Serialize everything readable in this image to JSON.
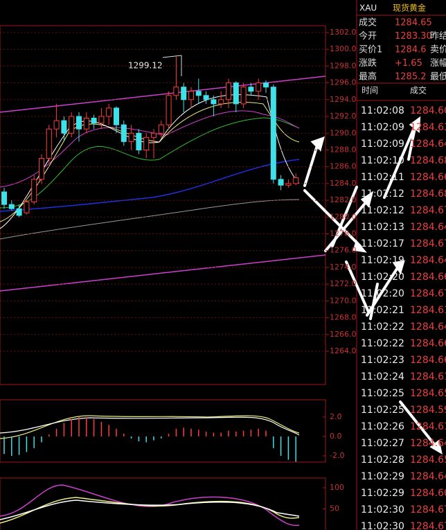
{
  "header": {
    "symbol": "XAU",
    "name": "现货黄金"
  },
  "quote": [
    {
      "label": "成交",
      "value": "1284.65"
    },
    {
      "label": "今开",
      "value": "1283.30",
      "extra": "昨结"
    },
    {
      "label": "买价1",
      "value": "1284.6",
      "extra": "卖价"
    },
    {
      "label": "涨跌",
      "value": "+1.65",
      "extra": "涨幅"
    },
    {
      "label": "最高",
      "value": "1285.2",
      "extra": "最低"
    }
  ],
  "trades": {
    "headers": [
      "时间",
      "成交"
    ],
    "rows": [
      [
        "11:02:08",
        "1284.60"
      ],
      [
        "11:02:09",
        "1284.63"
      ],
      [
        "11:02:09",
        "1284.64"
      ],
      [
        "11:02:10",
        "1284.68"
      ],
      [
        "11:02:11",
        "1284.66"
      ],
      [
        "11:02:12",
        "1284.68"
      ],
      [
        "11:02:12",
        "1284.67"
      ],
      [
        "11:02:13",
        "1284.64"
      ],
      [
        "11:02:17",
        "1284.67"
      ],
      [
        "11:02:19",
        "1284.64"
      ],
      [
        "11:02:20",
        "1284.66"
      ],
      [
        "11:02:20",
        "1284.67"
      ],
      [
        "11:02:21",
        "1284.61"
      ],
      [
        "11:02:22",
        "1284.64"
      ],
      [
        "11:02:22",
        "1284.66"
      ],
      [
        "11:02:23",
        "1284.66"
      ],
      [
        "11:02:24",
        "1284.61"
      ],
      [
        "11:02:25",
        "1284.65"
      ],
      [
        "11:02:25",
        "1284.59"
      ],
      [
        "11:02:26",
        "1284.61"
      ],
      [
        "11:02:27",
        "1284.64"
      ],
      [
        "11:02:28",
        "1284.65"
      ],
      [
        "11:02:29",
        "1284.64"
      ],
      [
        "11:02:29",
        "1284.60"
      ],
      [
        "11:02:30",
        "1284.67"
      ],
      [
        "11:02:30",
        "1284.67"
      ]
    ]
  },
  "chart": {
    "annotation": "1299.12",
    "ylim": [
      1302.8,
      1262.8
    ],
    "yticks": [
      {
        "value": 1302,
        "label": "1302.0"
      },
      {
        "value": 1300,
        "label": "1300.0"
      },
      {
        "value": 1298,
        "label": "1298.0"
      },
      {
        "value": 1296,
        "label": "1296.0"
      },
      {
        "value": 1294,
        "label": "1294.0"
      },
      {
        "value": 1292,
        "label": "1292.0"
      },
      {
        "value": 1290,
        "label": "1290.0"
      },
      {
        "value": 1288,
        "label": "1288.0"
      },
      {
        "value": 1286,
        "label": "1286.0"
      },
      {
        "value": 1284,
        "label": "1284.0"
      },
      {
        "value": 1282,
        "label": "1282.0"
      },
      {
        "value": 1280,
        "label": "1280.0"
      },
      {
        "value": 1278,
        "label": "1278.0"
      },
      {
        "value": 1276,
        "label": "1276.0"
      },
      {
        "value": 1274,
        "label": "1274.0"
      },
      {
        "value": 1272,
        "label": "1272.0"
      },
      {
        "value": 1270,
        "label": "1270.0"
      },
      {
        "value": 1268,
        "label": "1268.0"
      },
      {
        "value": 1266,
        "label": "1266.0"
      },
      {
        "value": 1264,
        "label": "1264.0"
      }
    ],
    "candles": [
      [
        1283.0,
        1281.5,
        1283.5,
        1281.0
      ],
      [
        1281.5,
        1281.0,
        1282.0,
        1280.8
      ],
      [
        1281.0,
        1280.2,
        1281.5,
        1280.0
      ],
      [
        1280.5,
        1281.8,
        1282.2,
        1280.3
      ],
      [
        1281.8,
        1284.5,
        1285.0,
        1281.5
      ],
      [
        1284.5,
        1287.0,
        1287.5,
        1284.0
      ],
      [
        1287.0,
        1290.5,
        1291.0,
        1286.5
      ],
      [
        1290.5,
        1291.5,
        1293.5,
        1289.5
      ],
      [
        1291.5,
        1290.0,
        1292.0,
        1289.0
      ],
      [
        1290.0,
        1292.0,
        1292.5,
        1289.5
      ],
      [
        1292.0,
        1290.5,
        1292.5,
        1289.0
      ],
      [
        1290.5,
        1291.8,
        1292.5,
        1290.0
      ],
      [
        1291.8,
        1291.2,
        1292.2,
        1290.5
      ],
      [
        1291.2,
        1292.0,
        1293.0,
        1290.5
      ],
      [
        1292.0,
        1293.0,
        1293.5,
        1291.0
      ],
      [
        1293.0,
        1291.0,
        1293.2,
        1290.0
      ],
      [
        1291.0,
        1289.0,
        1291.5,
        1288.5
      ],
      [
        1289.0,
        1290.0,
        1291.0,
        1288.0
      ],
      [
        1290.0,
        1288.0,
        1290.5,
        1287.5
      ],
      [
        1288.0,
        1289.5,
        1290.0,
        1287.0
      ],
      [
        1289.5,
        1290.0,
        1290.5,
        1287.0
      ],
      [
        1290.0,
        1291.0,
        1291.5,
        1289.5
      ],
      [
        1291.0,
        1294.5,
        1295.0,
        1290.5
      ],
      [
        1294.5,
        1295.5,
        1299.12,
        1294.0
      ],
      [
        1295.5,
        1294.0,
        1296.0,
        1292.5
      ],
      [
        1294.0,
        1295.0,
        1295.5,
        1293.0
      ],
      [
        1295.0,
        1294.5,
        1296.5,
        1293.5
      ],
      [
        1294.5,
        1294.0,
        1295.0,
        1293.5
      ],
      [
        1294.0,
        1293.5,
        1294.5,
        1292.0
      ],
      [
        1293.5,
        1294.0,
        1295.0,
        1293.0
      ],
      [
        1294.0,
        1296.0,
        1296.5,
        1293.0
      ],
      [
        1296.0,
        1293.5,
        1296.2,
        1292.5
      ],
      [
        1293.5,
        1295.5,
        1296.0,
        1293.0
      ],
      [
        1295.5,
        1295.0,
        1296.0,
        1294.5
      ],
      [
        1295.0,
        1296.0,
        1296.5,
        1294.0
      ],
      [
        1296.0,
        1295.5,
        1296.3,
        1294.8
      ],
      [
        1295.5,
        1284.5,
        1295.8,
        1284.0
      ],
      [
        1284.5,
        1283.8,
        1285.0,
        1283.2
      ],
      [
        1283.8,
        1284.0,
        1284.5,
        1283.5
      ],
      [
        1284.0,
        1284.7,
        1285.2,
        1283.8
      ]
    ],
    "macd": {
      "yticks": [
        {
          "value": 2,
          "label": "2.0"
        },
        {
          "value": 0,
          "label": "0.0"
        },
        {
          "value": -2,
          "label": "-2.0"
        }
      ],
      "values": [
        -1.8,
        -2.0,
        -1.9,
        -1.6,
        -1.2,
        -0.6,
        0.2,
        0.8,
        1.4,
        1.8,
        2.0,
        2.0,
        1.8,
        1.5,
        1.2,
        0.8,
        0.3,
        -0.2,
        -0.5,
        -0.6,
        -0.4,
        -0.2,
        0.3,
        0.8,
        0.9,
        0.8,
        0.7,
        0.5,
        0.4,
        0.4,
        0.6,
        0.5,
        0.6,
        0.7,
        0.8,
        0.6,
        -1.2,
        -2.0,
        -2.4,
        -2.6
      ]
    },
    "kdj": {
      "yticks": [
        100,
        50
      ]
    }
  }
}
